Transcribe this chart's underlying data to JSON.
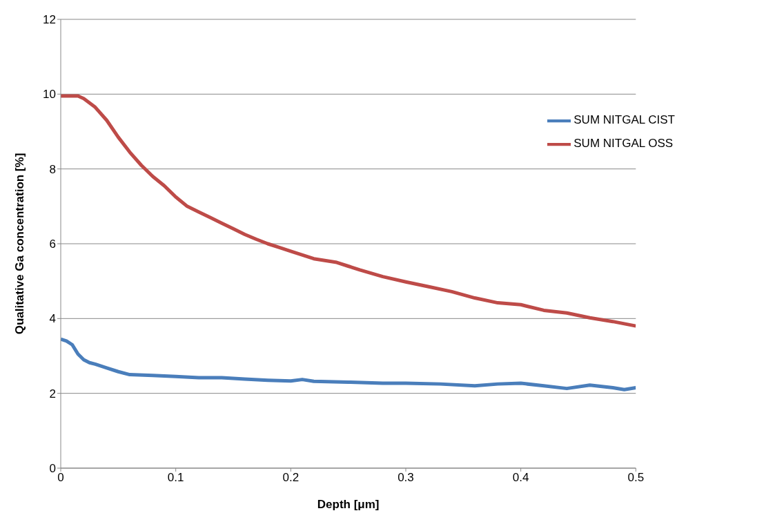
{
  "chart_data": {
    "type": "line",
    "xlabel": "Depth [μm]",
    "ylabel": "Qualitative Ga concentration [%]",
    "xlim": [
      0,
      0.5
    ],
    "xticks": [
      0,
      0.1,
      0.2,
      0.3,
      0.4,
      0.5
    ],
    "ylim": [
      0,
      12
    ],
    "yticks": [
      0,
      2,
      4,
      6,
      8,
      10,
      12
    ],
    "grid": "y",
    "legend": "top right",
    "marker": "none",
    "line_style": "solid",
    "series": [
      {
        "name": "SUM NITGAL CIST",
        "color": "#4a7ebb",
        "x": [
          0,
          0.005,
          0.01,
          0.015,
          0.02,
          0.025,
          0.03,
          0.04,
          0.05,
          0.06,
          0.08,
          0.1,
          0.12,
          0.14,
          0.16,
          0.18,
          0.2,
          0.21,
          0.22,
          0.25,
          0.28,
          0.3,
          0.33,
          0.36,
          0.38,
          0.4,
          0.42,
          0.44,
          0.46,
          0.48,
          0.49,
          0.5
        ],
        "values": [
          3.45,
          3.4,
          3.3,
          3.05,
          2.9,
          2.82,
          2.78,
          2.68,
          2.58,
          2.5,
          2.48,
          2.45,
          2.42,
          2.42,
          2.38,
          2.35,
          2.33,
          2.37,
          2.32,
          2.3,
          2.27,
          2.27,
          2.25,
          2.2,
          2.25,
          2.27,
          2.2,
          2.13,
          2.22,
          2.15,
          2.1,
          2.15
        ]
      },
      {
        "name": "SUM NITGAL OSS",
        "color": "#be4b48",
        "x": [
          0,
          0.015,
          0.02,
          0.03,
          0.04,
          0.05,
          0.06,
          0.07,
          0.08,
          0.09,
          0.1,
          0.11,
          0.12,
          0.13,
          0.14,
          0.15,
          0.16,
          0.17,
          0.18,
          0.19,
          0.2,
          0.22,
          0.24,
          0.25,
          0.26,
          0.28,
          0.3,
          0.32,
          0.34,
          0.36,
          0.38,
          0.4,
          0.42,
          0.44,
          0.46,
          0.48,
          0.5
        ],
        "values": [
          9.95,
          9.95,
          9.88,
          9.65,
          9.3,
          8.85,
          8.45,
          8.1,
          7.8,
          7.55,
          7.25,
          7.0,
          6.85,
          6.7,
          6.55,
          6.4,
          6.25,
          6.12,
          6.0,
          5.9,
          5.8,
          5.6,
          5.5,
          5.4,
          5.3,
          5.12,
          4.98,
          4.85,
          4.72,
          4.55,
          4.42,
          4.37,
          4.22,
          4.15,
          4.02,
          3.92,
          3.8
        ]
      }
    ]
  }
}
